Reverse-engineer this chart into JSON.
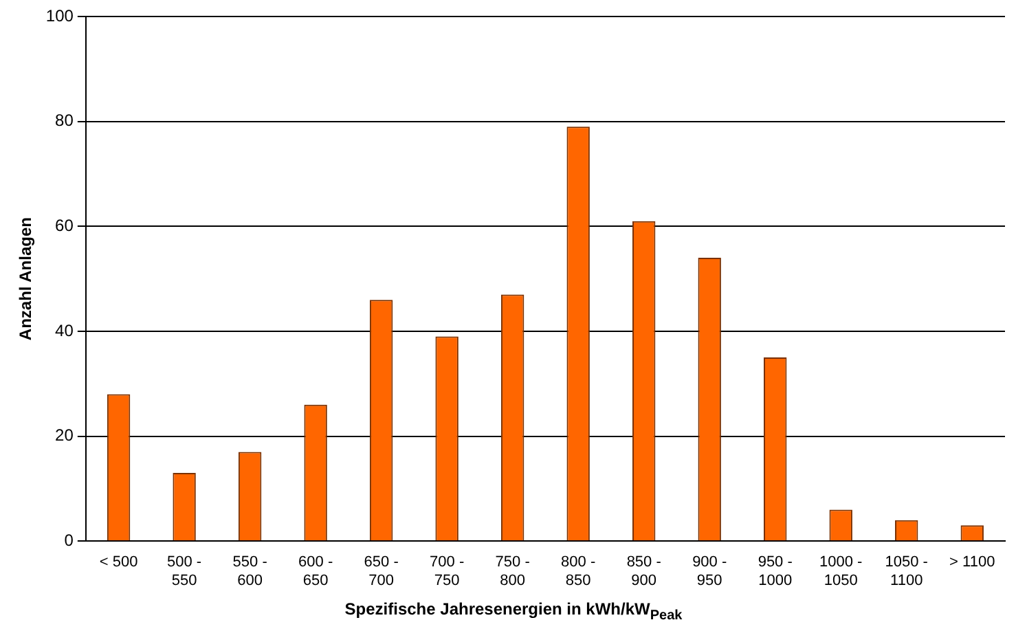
{
  "chart_data": {
    "type": "bar",
    "categories": [
      "< 500",
      "500 - 550",
      "550 - 600",
      "600 - 650",
      "650 - 700",
      "700 - 750",
      "750 - 800",
      "800 - 850",
      "850 - 900",
      "900 - 950",
      "950 - 1000",
      "1000 - 1050",
      "1050 - 1100",
      "> 1100"
    ],
    "values": [
      28,
      13,
      17,
      26,
      46,
      39,
      47,
      79,
      61,
      54,
      35,
      6,
      4,
      3
    ],
    "color": "#ff6600",
    "xlabel": "Spezifische Jahresenergien in kWh/kW$_{Peak}$",
    "ylabel": "Anzahl Anlagen",
    "ylim": [
      0,
      100
    ],
    "yticks": [
      0,
      20,
      40,
      60,
      80,
      100
    ],
    "grid": "y",
    "legend": false
  }
}
